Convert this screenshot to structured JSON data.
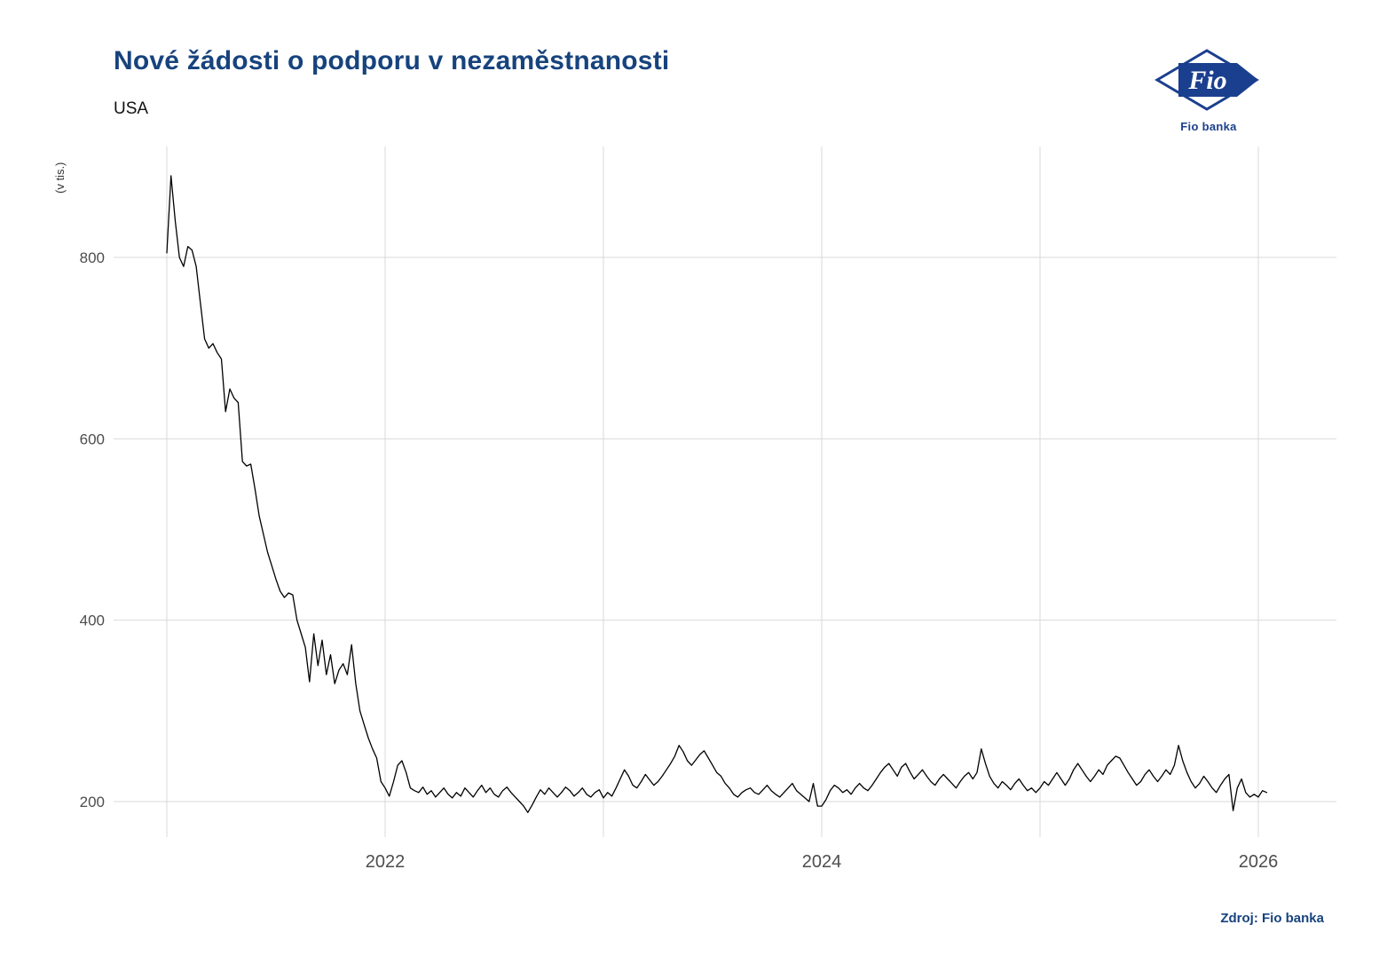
{
  "header": {
    "title": "Nové žádosti o podporu v nezaměstnanosti",
    "subtitle": "USA"
  },
  "logo": {
    "label": "Fio",
    "caption": "Fio banka",
    "color": "#1b3f8f"
  },
  "footer": {
    "source": "Zdroj: Fio banka"
  },
  "colors": {
    "title": "#17437d",
    "line": "#000000",
    "grid": "#d9d9d9",
    "tick": "#4d4d4d"
  },
  "chart_data": {
    "type": "line",
    "title": "Nové žádosti o podporu v nezaměstnanosti",
    "subtitle": "USA",
    "ylabel": "(v tis.)",
    "xlabel": "",
    "x_start_year": 2021,
    "x_step_years": 0.019230769,
    "xlim": [
      2020.76,
      2026.35
    ],
    "ylim": [
      159,
      922
    ],
    "grid": true,
    "legend": "none",
    "x_gridlines": [
      2021,
      2022,
      2023,
      2024,
      2025,
      2026
    ],
    "x_tick_labels": [
      {
        "x": 2022,
        "label": "2022"
      },
      {
        "x": 2024,
        "label": "2024"
      },
      {
        "x": 2026,
        "label": "2026"
      }
    ],
    "y_ticks": [
      {
        "v": 200,
        "label": "200"
      },
      {
        "v": 400,
        "label": "400"
      },
      {
        "v": 600,
        "label": "600"
      },
      {
        "v": 800,
        "label": "800"
      }
    ],
    "series": [
      {
        "name": "Nové žádosti (v tis.), týdenní data",
        "values": [
          805,
          890,
          840,
          800,
          790,
          812,
          808,
          790,
          750,
          710,
          700,
          705,
          695,
          688,
          630,
          655,
          645,
          640,
          575,
          570,
          572,
          545,
          515,
          495,
          475,
          460,
          445,
          432,
          425,
          430,
          428,
          400,
          385,
          370,
          332,
          385,
          350,
          378,
          340,
          362,
          330,
          345,
          352,
          340,
          373,
          330,
          300,
          285,
          270,
          258,
          248,
          222,
          215,
          206,
          222,
          240,
          245,
          232,
          215,
          212,
          210,
          216,
          208,
          212,
          205,
          210,
          215,
          208,
          204,
          210,
          206,
          215,
          210,
          205,
          212,
          218,
          210,
          215,
          208,
          205,
          212,
          216,
          210,
          205,
          200,
          195,
          188,
          196,
          205,
          213,
          208,
          215,
          210,
          205,
          210,
          216,
          212,
          206,
          210,
          215,
          208,
          205,
          210,
          213,
          204,
          210,
          206,
          215,
          225,
          235,
          228,
          218,
          215,
          222,
          230,
          224,
          218,
          222,
          228,
          235,
          242,
          250,
          262,
          255,
          245,
          240,
          246,
          252,
          256,
          248,
          240,
          232,
          228,
          220,
          215,
          208,
          205,
          210,
          213,
          215,
          210,
          208,
          213,
          218,
          212,
          208,
          205,
          210,
          215,
          220,
          212,
          208,
          204,
          200,
          220,
          195,
          195,
          202,
          212,
          218,
          215,
          210,
          213,
          208,
          215,
          220,
          215,
          212,
          218,
          225,
          232,
          238,
          242,
          235,
          228,
          238,
          242,
          233,
          225,
          230,
          235,
          228,
          222,
          218,
          225,
          230,
          225,
          220,
          215,
          222,
          228,
          232,
          225,
          232,
          258,
          242,
          228,
          220,
          215,
          222,
          218,
          213,
          220,
          225,
          218,
          212,
          215,
          210,
          215,
          222,
          218,
          225,
          232,
          225,
          218,
          225,
          235,
          242,
          235,
          228,
          222,
          228,
          235,
          230,
          240,
          245,
          250,
          248,
          240,
          232,
          225,
          218,
          222,
          230,
          235,
          228,
          222,
          228,
          235,
          230,
          240,
          262,
          245,
          232,
          222,
          215,
          220,
          228,
          222,
          215,
          210,
          218,
          225,
          230,
          190,
          215,
          225,
          210,
          205,
          208,
          205,
          212,
          210
        ]
      }
    ]
  }
}
